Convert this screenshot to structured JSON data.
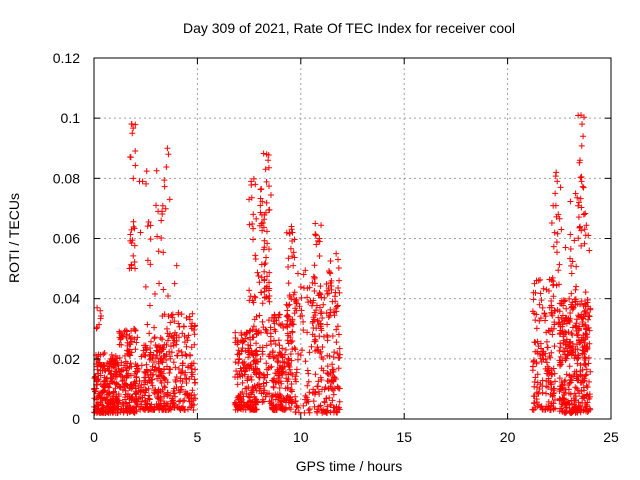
{
  "chart_data": {
    "type": "scatter",
    "title": "Day 309 of 2021, Rate Of TEC Index for receiver cool",
    "xlabel": "GPS time / hours",
    "ylabel": "ROTI / TECUs",
    "xlim": [
      0,
      25
    ],
    "ylim": [
      0,
      0.12
    ],
    "xticks": [
      0,
      5,
      10,
      15,
      20,
      25
    ],
    "xtick_labels": [
      "0",
      "5",
      "10",
      "15",
      "20",
      "25"
    ],
    "yticks": [
      0,
      0.02,
      0.04,
      0.06,
      0.08,
      0.1,
      0.12
    ],
    "ytick_labels": [
      "0",
      "0.02",
      "0.04",
      "0.06",
      "0.08",
      "0.1",
      "0.12"
    ],
    "grid": true,
    "marker": "+",
    "color": "#ff0000",
    "series": [
      {
        "name": "ROTI",
        "clusters": [
          {
            "x_range": [
              0.0,
              1.2
            ],
            "y_range": [
              0.002,
              0.022
            ],
            "count": 260
          },
          {
            "x_range": [
              0.1,
              0.4
            ],
            "y_range": [
              0.03,
              0.037
            ],
            "count": 5
          },
          {
            "x_range": [
              1.2,
              2.1
            ],
            "y_range": [
              0.002,
              0.03
            ],
            "count": 160
          },
          {
            "x_range": [
              1.7,
              2.0
            ],
            "y_range": [
              0.05,
              0.099
            ],
            "count": 22
          },
          {
            "x_range": [
              2.0,
              3.5
            ],
            "y_range": [
              0.003,
              0.025
            ],
            "count": 200
          },
          {
            "x_range": [
              2.5,
              3.7
            ],
            "y_range": [
              0.02,
              0.09
            ],
            "count": 55
          },
          {
            "x_range": [
              3.5,
              4.9
            ],
            "y_range": [
              0.003,
              0.036
            ],
            "count": 180
          },
          {
            "x_range": [
              6.8,
              7.9
            ],
            "y_range": [
              0.003,
              0.03
            ],
            "count": 180
          },
          {
            "x_range": [
              7.5,
              8.6
            ],
            "y_range": [
              0.005,
              0.08
            ],
            "count": 140
          },
          {
            "x_range": [
              8.2,
              8.5
            ],
            "y_range": [
              0.04,
              0.089
            ],
            "count": 25
          },
          {
            "x_range": [
              8.6,
              9.6
            ],
            "y_range": [
              0.003,
              0.035
            ],
            "count": 180
          },
          {
            "x_range": [
              9.3,
              9.7
            ],
            "y_range": [
              0.03,
              0.064
            ],
            "count": 30
          },
          {
            "x_range": [
              9.7,
              11.9
            ],
            "y_range": [
              0.002,
              0.05
            ],
            "count": 220
          },
          {
            "x_range": [
              10.5,
              11.0
            ],
            "y_range": [
              0.03,
              0.065
            ],
            "count": 30
          },
          {
            "x_range": [
              11.3,
              11.9
            ],
            "y_range": [
              0.01,
              0.055
            ],
            "count": 25
          },
          {
            "x_range": [
              21.2,
              22.3
            ],
            "y_range": [
              0.003,
              0.047
            ],
            "count": 160
          },
          {
            "x_range": [
              22.1,
              22.6
            ],
            "y_range": [
              0.03,
              0.082
            ],
            "count": 30
          },
          {
            "x_range": [
              22.5,
              24.0
            ],
            "y_range": [
              0.002,
              0.04
            ],
            "count": 320
          },
          {
            "x_range": [
              23.0,
              23.9
            ],
            "y_range": [
              0.02,
              0.075
            ],
            "count": 60
          },
          {
            "x_range": [
              23.4,
              23.7
            ],
            "y_range": [
              0.06,
              0.102
            ],
            "count": 15
          }
        ],
        "points": [
          [
            1.82,
            0.098
          ],
          [
            1.85,
            0.095
          ],
          [
            1.78,
            0.087
          ],
          [
            1.9,
            0.08
          ],
          [
            3.55,
            0.09
          ],
          [
            3.6,
            0.088
          ],
          [
            2.35,
            0.079
          ],
          [
            2.2,
            0.079
          ],
          [
            2.25,
            0.062
          ],
          [
            3.0,
            0.071
          ],
          [
            3.1,
            0.069
          ],
          [
            3.25,
            0.066
          ],
          [
            4.0,
            0.051
          ],
          [
            3.9,
            0.045
          ],
          [
            0.15,
            0.037
          ],
          [
            0.3,
            0.036
          ],
          [
            8.35,
            0.088
          ],
          [
            8.42,
            0.086
          ],
          [
            8.3,
            0.083
          ],
          [
            7.6,
            0.079
          ],
          [
            7.8,
            0.078
          ],
          [
            7.5,
            0.073
          ],
          [
            7.7,
            0.068
          ],
          [
            8.1,
            0.065
          ],
          [
            9.55,
            0.064
          ],
          [
            9.6,
            0.062
          ],
          [
            10.7,
            0.065
          ],
          [
            10.9,
            0.06
          ],
          [
            10.75,
            0.058
          ],
          [
            11.8,
            0.053
          ],
          [
            11.85,
            0.046
          ],
          [
            23.55,
            0.101
          ],
          [
            23.6,
            0.098
          ],
          [
            23.65,
            0.094
          ],
          [
            23.5,
            0.086
          ],
          [
            23.58,
            0.079
          ],
          [
            22.35,
            0.082
          ],
          [
            22.4,
            0.079
          ],
          [
            22.3,
            0.075
          ],
          [
            22.45,
            0.068
          ],
          [
            23.45,
            0.072
          ],
          [
            23.7,
            0.068
          ],
          [
            23.9,
            0.061
          ],
          [
            23.95,
            0.056
          ],
          [
            22.8,
            0.057
          ],
          [
            22.6,
            0.063
          ],
          [
            21.4,
            0.046
          ],
          [
            21.3,
            0.045
          ]
        ]
      }
    ]
  }
}
